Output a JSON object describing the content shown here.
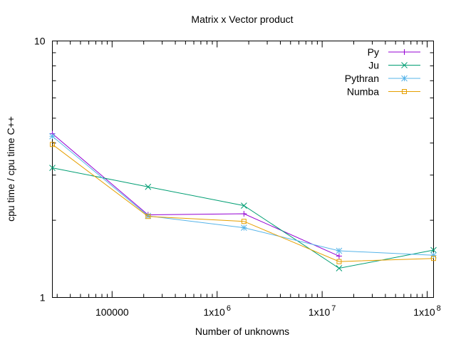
{
  "chart_data": {
    "type": "line",
    "title": "Matrix x Vector product",
    "xlabel": "Number of unknowns",
    "ylabel": "cpu time / cpu time C++",
    "x_scale": "log",
    "y_scale": "log",
    "xlim": [
      27000,
      115000000
    ],
    "ylim": [
      1,
      10
    ],
    "grid": false,
    "legend_position": "top-right",
    "y_ticks": [
      {
        "value": 1,
        "label": "1"
      },
      {
        "value": 10,
        "label": "10"
      }
    ],
    "x_ticks": [
      {
        "value": 100000,
        "base": "100000",
        "exp": ""
      },
      {
        "value": 1000000,
        "base": "1x10",
        "exp": "6"
      },
      {
        "value": 10000000,
        "base": "1x10",
        "exp": "7"
      },
      {
        "value": 100000000,
        "base": "1x10",
        "exp": "8"
      }
    ],
    "series": [
      {
        "name": "Py",
        "color": "#9400d3",
        "marker": "plus",
        "points": [
          [
            27000,
            4.35
          ],
          [
            220000,
            2.1
          ],
          [
            1800000,
            2.12
          ],
          [
            14500000,
            1.45
          ]
        ]
      },
      {
        "name": "Ju",
        "color": "#009e73",
        "marker": "cross",
        "points": [
          [
            27000,
            3.2
          ],
          [
            220000,
            2.7
          ],
          [
            1800000,
            2.28
          ],
          [
            14500000,
            1.3
          ],
          [
            115000000,
            1.53
          ]
        ]
      },
      {
        "name": "Pythran",
        "color": "#56b4e9",
        "marker": "star",
        "points": [
          [
            27000,
            4.25
          ],
          [
            220000,
            2.08
          ],
          [
            1800000,
            1.87
          ],
          [
            14500000,
            1.52
          ],
          [
            115000000,
            1.46
          ]
        ]
      },
      {
        "name": "Numba",
        "color": "#e69f00",
        "marker": "square",
        "points": [
          [
            27000,
            3.95
          ],
          [
            220000,
            2.07
          ],
          [
            1800000,
            1.98
          ],
          [
            14500000,
            1.38
          ],
          [
            115000000,
            1.42
          ]
        ]
      }
    ]
  }
}
